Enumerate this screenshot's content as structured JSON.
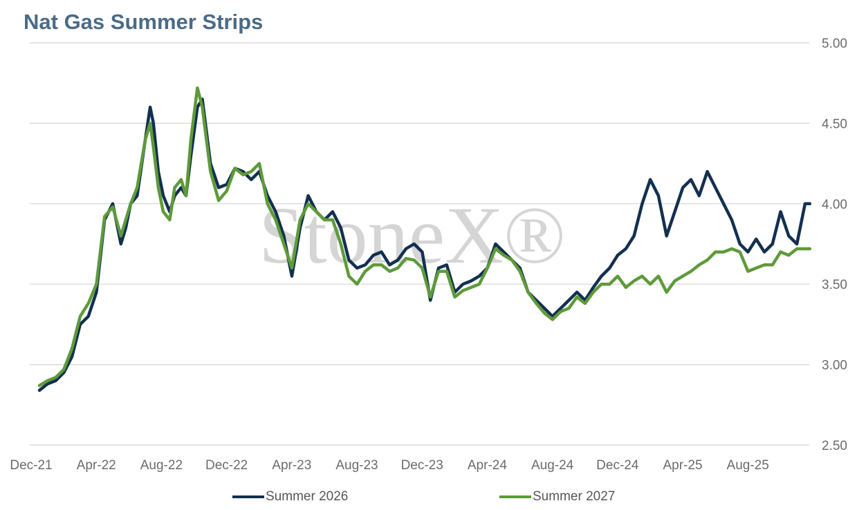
{
  "chart_data": {
    "type": "line",
    "title": "Nat Gas Summer Strips",
    "xlabel": "",
    "ylabel": "",
    "y_axis_position": "right",
    "ylim": [
      2.5,
      5.0
    ],
    "y_ticks": [
      "2.50",
      "3.00",
      "3.50",
      "4.00",
      "4.50",
      "5.00"
    ],
    "x_ticks": [
      "Dec-21",
      "Apr-22",
      "Aug-22",
      "Dec-22",
      "Apr-23",
      "Aug-23",
      "Dec-23",
      "Apr-24",
      "Aug-24",
      "Dec-24",
      "Apr-25",
      "Aug-25"
    ],
    "x_range_months": [
      0,
      47.5
    ],
    "grid": "horizontal",
    "legend_position": "bottom",
    "watermark": "StoneX®",
    "series": [
      {
        "name": "Summer 2026",
        "color": "#13304f",
        "x": [
          0.0,
          0.5,
          1.0,
          1.5,
          2.0,
          2.5,
          3.0,
          3.5,
          4.0,
          4.5,
          5.0,
          5.3,
          5.6,
          6.0,
          6.5,
          6.8,
          7.0,
          7.3,
          7.6,
          8.0,
          8.3,
          8.7,
          9.0,
          9.3,
          9.7,
          10.0,
          10.5,
          11.0,
          11.5,
          12.0,
          12.5,
          13.0,
          13.5,
          14.0,
          14.5,
          15.0,
          15.5,
          16.0,
          16.5,
          17.0,
          17.5,
          18.0,
          18.5,
          19.0,
          19.5,
          20.0,
          20.5,
          21.0,
          21.5,
          22.0,
          22.5,
          23.0,
          23.5,
          24.0,
          24.5,
          25.0,
          25.5,
          26.0,
          26.5,
          27.0,
          27.5,
          28.0,
          28.5,
          29.0,
          29.5,
          30.0,
          30.5,
          31.0,
          31.5,
          32.0,
          32.5,
          33.0,
          33.5,
          34.0,
          34.5,
          35.0,
          35.5,
          36.0,
          36.5,
          37.0,
          37.5,
          38.0,
          38.5,
          39.0,
          39.5,
          40.0,
          40.5,
          41.0,
          41.5,
          42.0,
          42.5,
          43.0,
          43.5,
          44.0,
          44.5,
          45.0,
          45.5,
          46.0,
          46.5,
          47.0,
          47.3
        ],
        "values": [
          2.84,
          2.88,
          2.9,
          2.95,
          3.05,
          3.25,
          3.3,
          3.45,
          3.9,
          4.0,
          3.75,
          3.85,
          4.0,
          4.05,
          4.4,
          4.6,
          4.5,
          4.2,
          4.05,
          3.95,
          4.05,
          4.1,
          4.05,
          4.3,
          4.6,
          4.65,
          4.25,
          4.1,
          4.12,
          4.22,
          4.2,
          4.15,
          4.2,
          4.05,
          3.95,
          3.8,
          3.55,
          3.85,
          4.05,
          3.95,
          3.9,
          3.95,
          3.85,
          3.65,
          3.6,
          3.62,
          3.68,
          3.7,
          3.62,
          3.65,
          3.72,
          3.75,
          3.7,
          3.4,
          3.6,
          3.62,
          3.45,
          3.5,
          3.52,
          3.55,
          3.6,
          3.75,
          3.7,
          3.65,
          3.6,
          3.45,
          3.4,
          3.35,
          3.3,
          3.35,
          3.4,
          3.45,
          3.4,
          3.48,
          3.55,
          3.6,
          3.68,
          3.72,
          3.8,
          4.0,
          4.15,
          4.05,
          3.8,
          3.95,
          4.1,
          4.15,
          4.05,
          4.2,
          4.1,
          4.0,
          3.9,
          3.75,
          3.7,
          3.78,
          3.7,
          3.75,
          3.95,
          3.8,
          3.75,
          4.0,
          4.0
        ]
      },
      {
        "name": "Summer 2027",
        "color": "#5e9a3a",
        "x": [
          0.0,
          0.5,
          1.0,
          1.5,
          2.0,
          2.5,
          3.0,
          3.5,
          4.0,
          4.5,
          5.0,
          5.3,
          5.6,
          6.0,
          6.5,
          6.8,
          7.0,
          7.3,
          7.6,
          8.0,
          8.3,
          8.7,
          9.0,
          9.3,
          9.7,
          10.0,
          10.5,
          11.0,
          11.5,
          12.0,
          12.5,
          13.0,
          13.5,
          14.0,
          14.5,
          15.0,
          15.5,
          16.0,
          16.5,
          17.0,
          17.5,
          18.0,
          18.5,
          19.0,
          19.5,
          20.0,
          20.5,
          21.0,
          21.5,
          22.0,
          22.5,
          23.0,
          23.5,
          24.0,
          24.5,
          25.0,
          25.5,
          26.0,
          26.5,
          27.0,
          27.5,
          28.0,
          28.5,
          29.0,
          29.5,
          30.0,
          30.5,
          31.0,
          31.5,
          32.0,
          32.5,
          33.0,
          33.5,
          34.0,
          34.5,
          35.0,
          35.5,
          36.0,
          36.5,
          37.0,
          37.5,
          38.0,
          38.5,
          39.0,
          39.5,
          40.0,
          40.5,
          41.0,
          41.5,
          42.0,
          42.5,
          43.0,
          43.5,
          44.0,
          44.5,
          45.0,
          45.5,
          46.0,
          46.5,
          47.0,
          47.3
        ],
        "values": [
          2.87,
          2.9,
          2.92,
          2.97,
          3.1,
          3.3,
          3.38,
          3.5,
          3.92,
          3.98,
          3.8,
          3.9,
          4.0,
          4.1,
          4.4,
          4.5,
          4.35,
          4.1,
          3.95,
          3.9,
          4.1,
          4.15,
          4.05,
          4.4,
          4.72,
          4.6,
          4.2,
          4.02,
          4.08,
          4.22,
          4.18,
          4.2,
          4.25,
          4.0,
          3.9,
          3.75,
          3.6,
          3.9,
          4.0,
          3.95,
          3.9,
          3.9,
          3.75,
          3.55,
          3.5,
          3.58,
          3.62,
          3.62,
          3.58,
          3.6,
          3.66,
          3.65,
          3.6,
          3.42,
          3.58,
          3.58,
          3.42,
          3.46,
          3.48,
          3.5,
          3.6,
          3.72,
          3.68,
          3.65,
          3.58,
          3.45,
          3.38,
          3.32,
          3.28,
          3.33,
          3.35,
          3.42,
          3.38,
          3.45,
          3.5,
          3.5,
          3.55,
          3.48,
          3.52,
          3.55,
          3.5,
          3.55,
          3.45,
          3.52,
          3.55,
          3.58,
          3.62,
          3.65,
          3.7,
          3.7,
          3.72,
          3.7,
          3.58,
          3.6,
          3.62,
          3.62,
          3.7,
          3.68,
          3.72,
          3.72,
          3.72
        ]
      }
    ]
  }
}
